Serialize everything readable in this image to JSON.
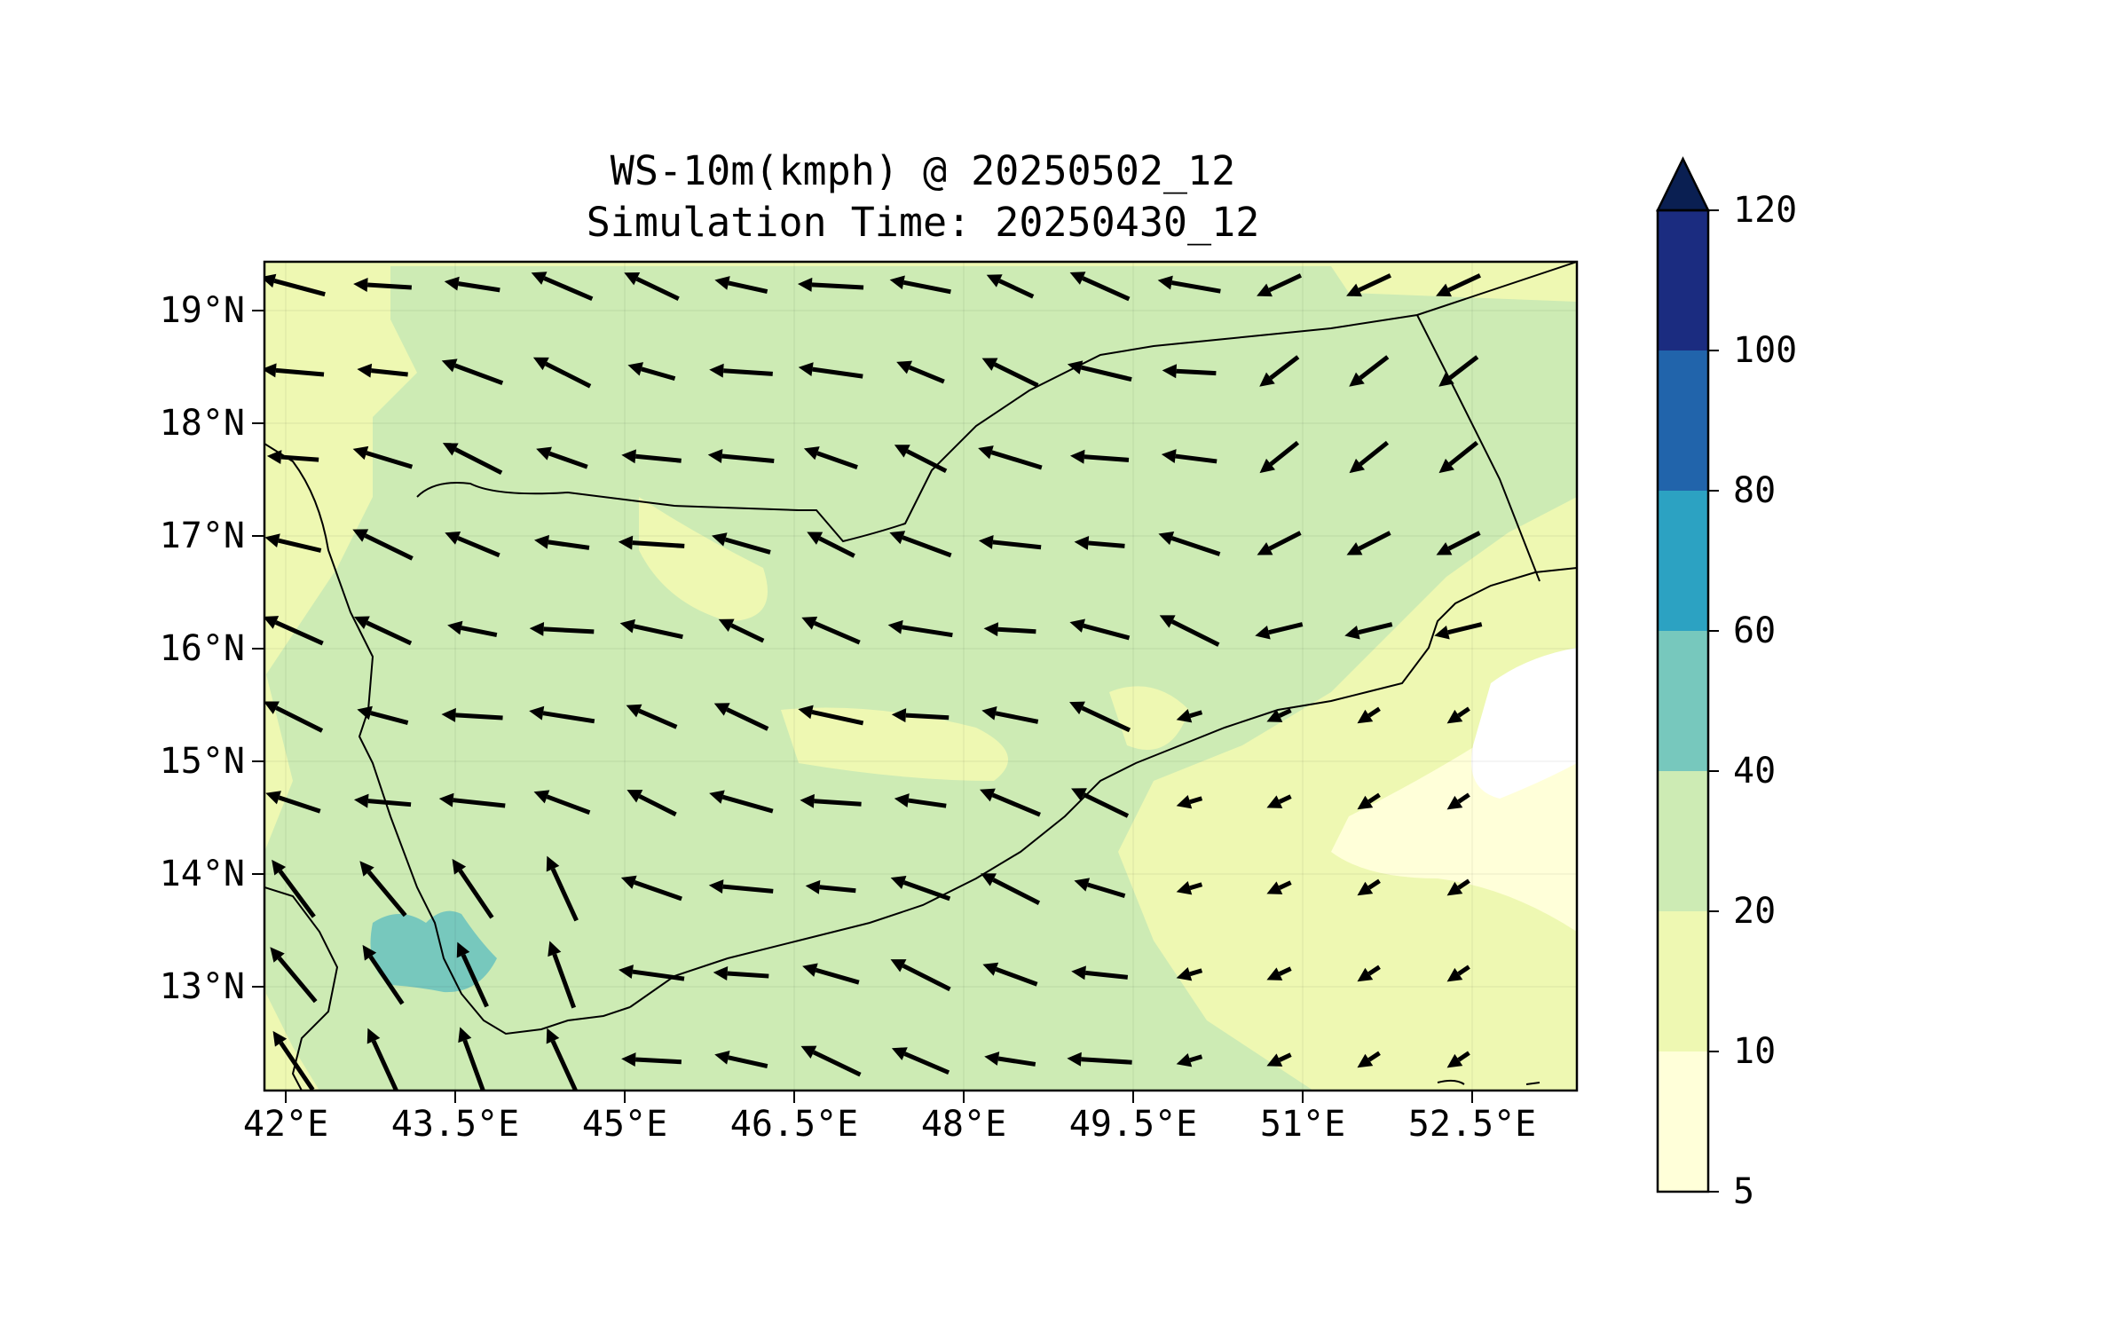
{
  "title": {
    "line1": "WS-10m(kmph) @ 20250502_12",
    "line2": "Simulation Time: 20250430_12"
  },
  "axes": {
    "lon_ticks": [
      "42°E",
      "43.5°E",
      "45°E",
      "46.5°E",
      "48°E",
      "49.5°E",
      "51°E",
      "52.5°E"
    ],
    "lat_ticks": [
      "19°N",
      "18°N",
      "17°N",
      "16°N",
      "15°N",
      "14°N",
      "13°N"
    ]
  },
  "colorbar": {
    "labels": [
      "120",
      "100",
      "80",
      "60",
      "40",
      "20",
      "10",
      "5"
    ],
    "levels": [
      5,
      10,
      20,
      40,
      60,
      80,
      100,
      120
    ],
    "colors": [
      "#ffffd9",
      "#eef8b2",
      "#cdebb4",
      "#77c8bd",
      "#2ca2c2",
      "#2164ab",
      "#1b2c80",
      "#0a1f52"
    ],
    "extend": "max"
  },
  "map": {
    "extent_lon": [
      41.9,
      53.8
    ],
    "extent_lat": [
      12.1,
      19.45
    ],
    "background_color": "#eef8b2",
    "vector_field": "10 m wind, predominantly easterly to south-easterly (blowing toward the west / north-west)"
  }
}
